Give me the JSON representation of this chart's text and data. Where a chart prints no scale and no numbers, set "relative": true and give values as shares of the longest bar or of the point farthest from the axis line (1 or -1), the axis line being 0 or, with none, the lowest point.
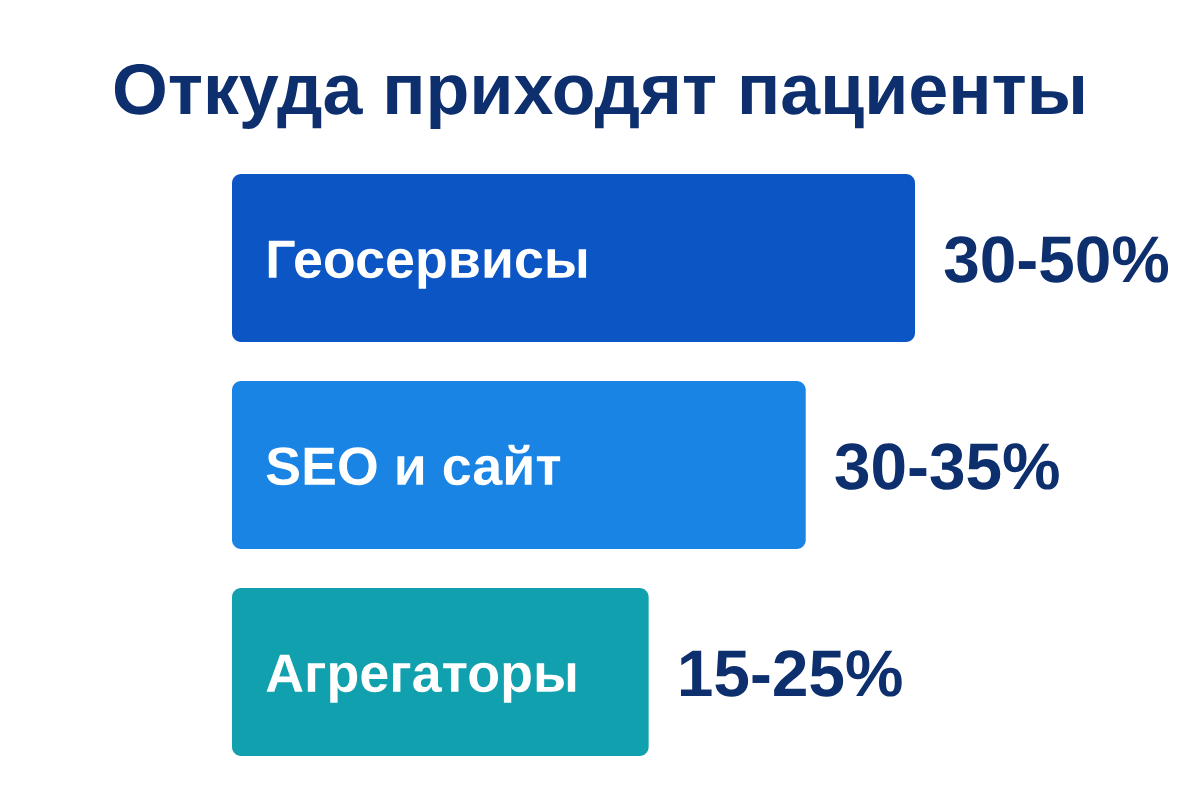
{
  "chart_data": {
    "type": "bar",
    "orientation": "horizontal",
    "title": "Откуда приходят пациенты",
    "categories": [
      "Геосервисы",
      "SEO и сайт",
      "Агрегаторы"
    ],
    "values": [
      1,
      0.84,
      0.61
    ],
    "colors": [
      "#0b55c4",
      "#1a84e4",
      "#11a0ad"
    ],
    "relative": true,
    "tick_labels": "y",
    "annotations": [
      {
        "text": "30-50%",
        "x": 1,
        "y": "Геосервисы"
      },
      {
        "text": "30-35%",
        "x": 0.84,
        "y": "SEO и сайт"
      },
      {
        "text": "15-25%",
        "x": 0.61,
        "y": "Агрегаторы"
      }
    ]
  }
}
